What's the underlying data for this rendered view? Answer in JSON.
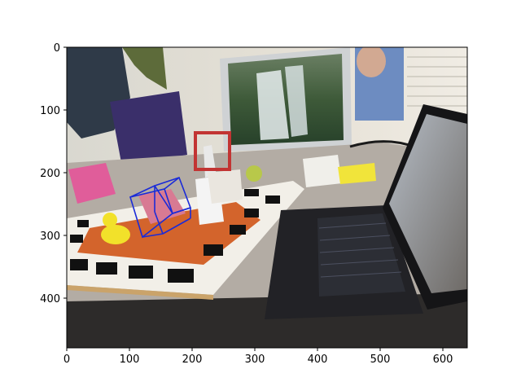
{
  "figure": {
    "kind": "matplotlib image plot",
    "x_ticks": [
      "0",
      "100",
      "200",
      "300",
      "400",
      "500",
      "600"
    ],
    "y_ticks": [
      "0",
      "100",
      "200",
      "300",
      "400"
    ],
    "x_range": [
      0,
      640
    ],
    "y_range": [
      480,
      0
    ]
  },
  "scene": {
    "objects": [
      "waterfall-poster",
      "person",
      "laptop",
      "keyboard",
      "rubber-duck",
      "glue-bottle",
      "pink-box",
      "purple-bin",
      "aruco-marker-board",
      "blue-wireframe-cube"
    ]
  },
  "colors": {
    "cube_edges": "#1a2bd8",
    "board_white": "#f2efe8",
    "marker_black": "#111111",
    "desk_wood": "#caa36a",
    "laptop_body": "#222226",
    "wall": "#e7e2d7",
    "duck": "#f2e12a"
  }
}
